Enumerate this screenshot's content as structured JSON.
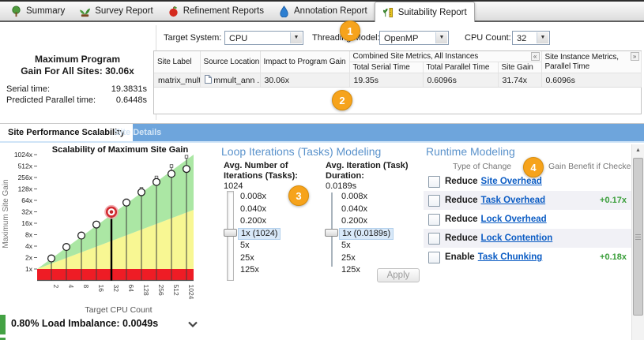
{
  "tabs": {
    "items": [
      {
        "label": "Summary",
        "icon": "tree-icon"
      },
      {
        "label": "Survey Report",
        "icon": "plant-icon"
      },
      {
        "label": "Refinement Reports",
        "icon": "apple-icon"
      },
      {
        "label": "Annotation Report",
        "icon": "drop-icon"
      },
      {
        "label": "Suitability Report",
        "icon": "sprout-ruler-icon"
      }
    ],
    "active": "Suitability Report"
  },
  "summary": {
    "title_line1": "Maximum Program",
    "title_line2": "Gain For All Sites: 30.06x",
    "rows": [
      {
        "label": "Serial time:",
        "value": "19.3831s"
      },
      {
        "label": "Predicted Parallel time:",
        "value": "0.6448s"
      }
    ]
  },
  "controls": {
    "target_system_label": "Target System:",
    "target_system_value": "CPU",
    "threading_model_label": "Threading Model:",
    "threading_model_value": "OpenMP",
    "cpu_count_label": "CPU Count:",
    "cpu_count_value": "32",
    "dropdown_arrow": "▼"
  },
  "badges": {
    "b1": "1",
    "b2": "2",
    "b3": "3",
    "b4": "4"
  },
  "site_table": {
    "columns": {
      "site_label": "Site Label",
      "source_location": "Source Location",
      "impact": "Impact to Program Gain",
      "combined_group": "Combined Site Metrics, All Instances",
      "total_serial": "Total Serial Time",
      "total_parallel": "Total Parallel Time",
      "site_gain": "Site Gain",
      "instance_group": "Site Instance Metrics, Parallel Time"
    },
    "collapse_left": "«",
    "collapse_right": "»",
    "row": {
      "site_label": "matrix_multi ...",
      "source_location": "mmult_ann ...",
      "impact": "30.06x",
      "total_serial": "19.35s",
      "total_parallel": "0.6096s",
      "site_gain": "31.74x",
      "instance_parallel": "0.6096s"
    }
  },
  "view_tabs": {
    "scalability": "Site Performance Scalability",
    "details": "Site Details"
  },
  "chart_data": {
    "type": "scatter",
    "title": "Scalability of Maximum Site Gain",
    "xlabel": "Target CPU Count",
    "ylabel": "Maximum Site Gain",
    "x": [
      2,
      4,
      8,
      16,
      32,
      64,
      128,
      256,
      512,
      1024
    ],
    "x_tick_labels": [
      "2",
      "4",
      "8",
      "16",
      "32",
      "64",
      "128",
      "256",
      "512",
      "1024"
    ],
    "y_tick_labels": [
      "1x",
      "2x",
      "4x",
      "8x",
      "16x",
      "32x",
      "64x",
      "128x",
      "256x",
      "512x",
      "1024x"
    ],
    "y_scale": "log2",
    "ylim": [
      1,
      1024
    ],
    "series": [
      {
        "name": "ideal-linear-stem-top",
        "values": [
          2,
          4,
          8,
          16,
          32,
          64,
          128,
          256,
          512,
          900
        ]
      },
      {
        "name": "predicted-site-gain",
        "values": [
          1.9,
          3.8,
          7.6,
          14.8,
          31.74,
          56,
          105,
          195,
          320,
          430
        ]
      }
    ],
    "selected_x": 32,
    "regions": {
      "green_upper_bound_at_right": 1024,
      "yellow_upper_bound_at_right": 36,
      "red_band_below": 1
    },
    "grid": false,
    "legend": "none"
  },
  "iterations_panel": {
    "heading": "Loop Iterations (Tasks) Modeling",
    "sliders": [
      {
        "title": "Avg. Number of Iterations (Tasks):",
        "value": "1024",
        "options": [
          "0.008x",
          "0.040x",
          "0.200x",
          "1x (1024)",
          "5x",
          "25x",
          "125x"
        ],
        "selected_index": 3
      },
      {
        "title": "Avg. Iteration (Task) Duration:",
        "value": "0.0189s",
        "options": [
          "0.008x",
          "0.040x",
          "0.200x",
          "1x (0.0189s)",
          "5x",
          "25x",
          "125x"
        ],
        "selected_index": 3
      }
    ],
    "apply_label": "Apply"
  },
  "runtime_panel": {
    "heading": "Runtime Modeling",
    "col_change": "Type of Change",
    "col_gain": "Gain Benefit if Checked",
    "rows": [
      {
        "prefix": "Reduce",
        "link": "Site Overhead",
        "gain": ""
      },
      {
        "prefix": "Reduce",
        "link": "Task Overhead",
        "gain": "+0.17x"
      },
      {
        "prefix": "Reduce",
        "link": "Lock Overhead",
        "gain": ""
      },
      {
        "prefix": "Reduce",
        "link": "Lock Contention",
        "gain": ""
      },
      {
        "prefix": "Enable",
        "link": "Task Chunking",
        "gain": "+0.18x"
      }
    ]
  },
  "footer": {
    "load_imbalance": "0.80% Load Imbalance: 0.0049s"
  },
  "scrollbar": {
    "up_arrow": "▲"
  },
  "colors": {
    "accent_blue": "#6ea5dc",
    "badge_orange": "#f6a31c",
    "chart_green": "#abe7a4",
    "chart_yellow": "#f8f793",
    "chart_red": "#ee1c25",
    "link_blue": "#0b5cc4",
    "gain_green": "#3a9e3a",
    "heading_blue": "#5a92cb"
  }
}
